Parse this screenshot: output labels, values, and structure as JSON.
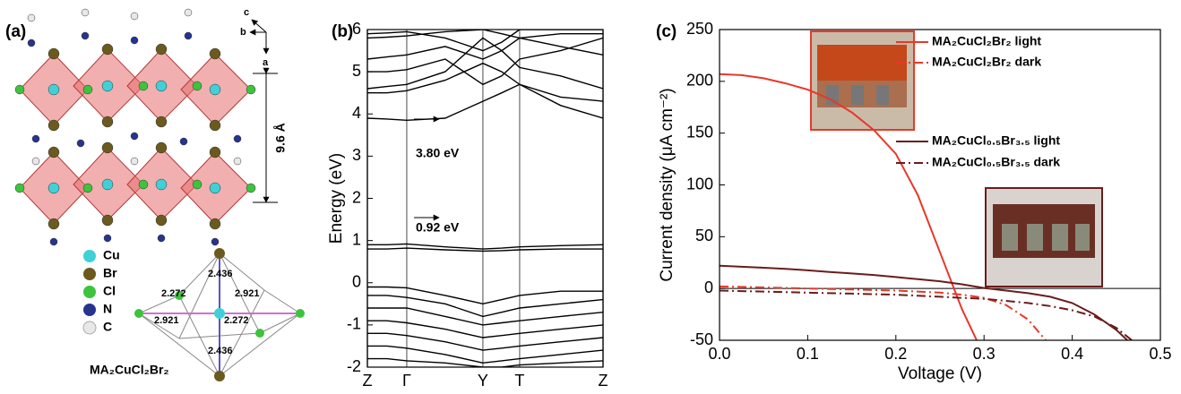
{
  "structure": {
    "panel_label": "(a)",
    "axes": [
      "c",
      "b",
      "a"
    ],
    "spacing": "9.6 Å",
    "elements": [
      "Cu",
      "Br",
      "Cl",
      "N",
      "C"
    ],
    "element_colors": [
      "#3fd0d8",
      "#6b5a1e",
      "#3cc43c",
      "#26348f",
      "#e8e8e8"
    ],
    "bond_lengths": [
      "2.436",
      "2.272",
      "2.921",
      "2.921",
      "2.272",
      "2.436"
    ],
    "formula": "MA₂CuCl₂Br₂"
  },
  "chart_data": [
    {
      "type": "line",
      "panel_label": "(b)",
      "ylabel": "Energy (eV)",
      "x": [
        0,
        0.083,
        0.167,
        0.33,
        0.49,
        0.57,
        0.646,
        0.82,
        1
      ],
      "xlim": [
        0,
        1
      ],
      "xticks": [
        {
          "value": 0,
          "label": "Z"
        },
        {
          "value": 0.167,
          "label": "Γ"
        },
        {
          "value": 0.49,
          "label": "Y"
        },
        {
          "value": 0.646,
          "label": "T"
        },
        {
          "value": 1,
          "label": "Z"
        }
      ],
      "ylim": [
        -2,
        6
      ],
      "yticks": [
        -2,
        -1,
        0,
        1,
        2,
        3,
        4,
        5,
        6
      ],
      "grid": true,
      "grid_axis": "x",
      "annotations": [
        "3.80 eV",
        "0.92 eV"
      ],
      "series": [
        {
          "color": "#000000",
          "values": [
            3.9,
            3.88,
            3.85,
            3.9,
            4.3,
            4.5,
            4.7,
            4.2,
            3.9
          ]
        },
        {
          "color": "#000000",
          "values": [
            4.5,
            4.5,
            4.55,
            4.8,
            5.2,
            5.0,
            4.7,
            4.4,
            4.3
          ]
        },
        {
          "color": "#000000",
          "values": [
            4.6,
            4.65,
            4.7,
            5.0,
            5.8,
            5.5,
            5.1,
            4.9,
            4.6
          ]
        },
        {
          "color": "#000000",
          "values": [
            5.0,
            5.0,
            5.05,
            5.3,
            4.7,
            4.9,
            5.3,
            5.5,
            5.8
          ]
        },
        {
          "color": "#000000",
          "values": [
            5.3,
            5.35,
            5.4,
            5.6,
            5.3,
            5.5,
            5.8,
            5.9,
            5.9
          ]
        },
        {
          "color": "#000000",
          "values": [
            5.8,
            5.82,
            5.85,
            5.95,
            6.0,
            5.9,
            5.8,
            5.6,
            5.4
          ]
        },
        {
          "color": "#000000",
          "values": [
            5.9,
            5.92,
            5.95,
            5.8,
            5.5,
            5.7,
            6.0,
            6.0,
            6.0
          ]
        },
        {
          "color": "#000000",
          "values": [
            0.9,
            0.9,
            0.92,
            0.85,
            0.8,
            0.82,
            0.85,
            0.88,
            0.9
          ]
        },
        {
          "color": "#000000",
          "values": [
            0.8,
            0.8,
            0.82,
            0.78,
            0.75,
            0.76,
            0.78,
            0.8,
            0.8
          ]
        },
        {
          "color": "#000000",
          "values": [
            -0.1,
            -0.1,
            -0.12,
            -0.3,
            -0.5,
            -0.4,
            -0.3,
            -0.2,
            -0.2
          ]
        },
        {
          "color": "#000000",
          "values": [
            -0.3,
            -0.3,
            -0.35,
            -0.5,
            -0.8,
            -0.7,
            -0.6,
            -0.5,
            -0.4
          ]
        },
        {
          "color": "#000000",
          "values": [
            -0.6,
            -0.6,
            -0.6,
            -0.8,
            -1.0,
            -0.95,
            -0.9,
            -0.8,
            -0.7
          ]
        },
        {
          "color": "#000000",
          "values": [
            -0.9,
            -0.9,
            -0.95,
            -1.1,
            -1.3,
            -1.25,
            -1.2,
            -1.1,
            -1.0
          ]
        },
        {
          "color": "#000000",
          "values": [
            -1.2,
            -1.2,
            -1.25,
            -1.4,
            -1.6,
            -1.55,
            -1.5,
            -1.4,
            -1.3
          ]
        },
        {
          "color": "#000000",
          "values": [
            -1.5,
            -1.5,
            -1.55,
            -1.7,
            -1.9,
            -1.85,
            -1.8,
            -1.7,
            -1.6
          ]
        },
        {
          "color": "#000000",
          "values": [
            -1.8,
            -1.8,
            -1.85,
            -1.9,
            -2.0,
            -2.0,
            -1.95,
            -1.9,
            -1.85
          ]
        }
      ]
    },
    {
      "type": "line",
      "panel_label": "(c)",
      "xlabel": "Voltage (V)",
      "ylabel": "Current density (μA cm⁻²)",
      "x": [
        0,
        0.025,
        0.05,
        0.075,
        0.1,
        0.125,
        0.15,
        0.175,
        0.2,
        0.225,
        0.25,
        0.275,
        0.3,
        0.325,
        0.35,
        0.375,
        0.4,
        0.425,
        0.45,
        0.475,
        0.5
      ],
      "xlim": [
        0,
        0.5
      ],
      "xticks": [
        {
          "value": 0,
          "label": "0.0"
        },
        0.1,
        0.2,
        0.3,
        0.4,
        0.5
      ],
      "ylim": [
        -50,
        250
      ],
      "yticks": [
        -50,
        0,
        50,
        100,
        150,
        200,
        250
      ],
      "zero_line": true,
      "series": [
        {
          "name": "MA₂CuCl₂Br₂ light",
          "color": "#e8372a",
          "dash": "solid",
          "values": [
            207,
            206,
            203,
            198,
            192,
            183,
            170,
            153,
            130,
            90,
            35,
            -20,
            -65,
            null,
            null,
            null,
            null,
            null,
            null,
            null,
            null
          ]
        },
        {
          "name": "MA₂CuCl₂Br₂ dark",
          "color": "#e8372a",
          "dash": "dashdot",
          "values": [
            2,
            1.5,
            1,
            0.5,
            0,
            -0.5,
            -1,
            -1.5,
            -2,
            -3,
            -4,
            -6,
            -9,
            -16,
            -30,
            -55,
            null,
            null,
            null,
            null,
            null
          ]
        },
        {
          "name": "MA₂CuCl₀.₅Br₃.₅ light",
          "color": "#6b1c1c",
          "dash": "solid",
          "values": [
            22,
            21,
            20,
            19,
            17.5,
            16,
            14.5,
            13,
            11,
            9,
            7,
            4,
            0.5,
            -2,
            -4.5,
            -8,
            -14,
            -25,
            -40,
            -60,
            null
          ]
        },
        {
          "name": "MA₂CuCl₀.₅Br₃.₅ dark",
          "color": "#6b1c1c",
          "dash": "dashdot",
          "values": [
            -2,
            -2.5,
            -3,
            -3.5,
            -4,
            -4.5,
            -5,
            -5.5,
            -6,
            -7,
            -8,
            -9,
            -10,
            -12,
            -14,
            -17,
            -21,
            -27,
            -38,
            -55,
            null
          ]
        }
      ]
    }
  ]
}
